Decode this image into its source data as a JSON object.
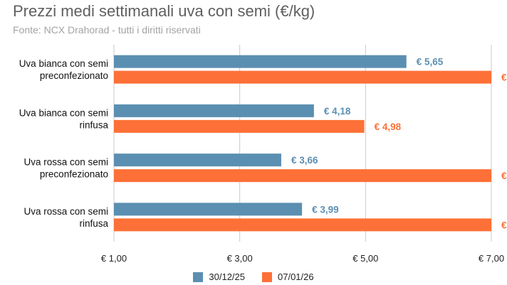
{
  "chart_data": {
    "type": "bar",
    "orientation": "horizontal",
    "title": "Prezzi medi settimanali uva con semi (€/kg)",
    "subtitle": "Fonte: NCX Drahorad - tutti i diritti riservati",
    "categories": [
      [
        "Uva bianca con semi",
        "preconfezionato"
      ],
      [
        "Uva bianca con semi",
        "rinfusa"
      ],
      [
        "Uva rossa con semi",
        "preconfezionato"
      ],
      [
        "Uva rossa con semi",
        "rinfusa"
      ]
    ],
    "series": [
      {
        "name": "30/12/25",
        "color": "#5b8fb1",
        "values": [
          5.65,
          4.18,
          3.66,
          3.99
        ],
        "labels": [
          "€ 5,65",
          "€ 4,18",
          "€ 3,66",
          "€ 3,99"
        ]
      },
      {
        "name": "07/01/26",
        "color": "#fd7037",
        "values": [
          7.0,
          4.98,
          7.0,
          7.0
        ],
        "labels": [
          "€",
          "€ 4,98",
          "€",
          "€"
        ]
      }
    ],
    "xlim": [
      1,
      7
    ],
    "xticks": [
      1,
      3,
      5,
      7
    ],
    "xtick_labels": [
      "€ 1,00",
      "€ 3,00",
      "€ 5,00",
      "€ 7,00"
    ],
    "grid": true,
    "legend_position": "bottom"
  }
}
